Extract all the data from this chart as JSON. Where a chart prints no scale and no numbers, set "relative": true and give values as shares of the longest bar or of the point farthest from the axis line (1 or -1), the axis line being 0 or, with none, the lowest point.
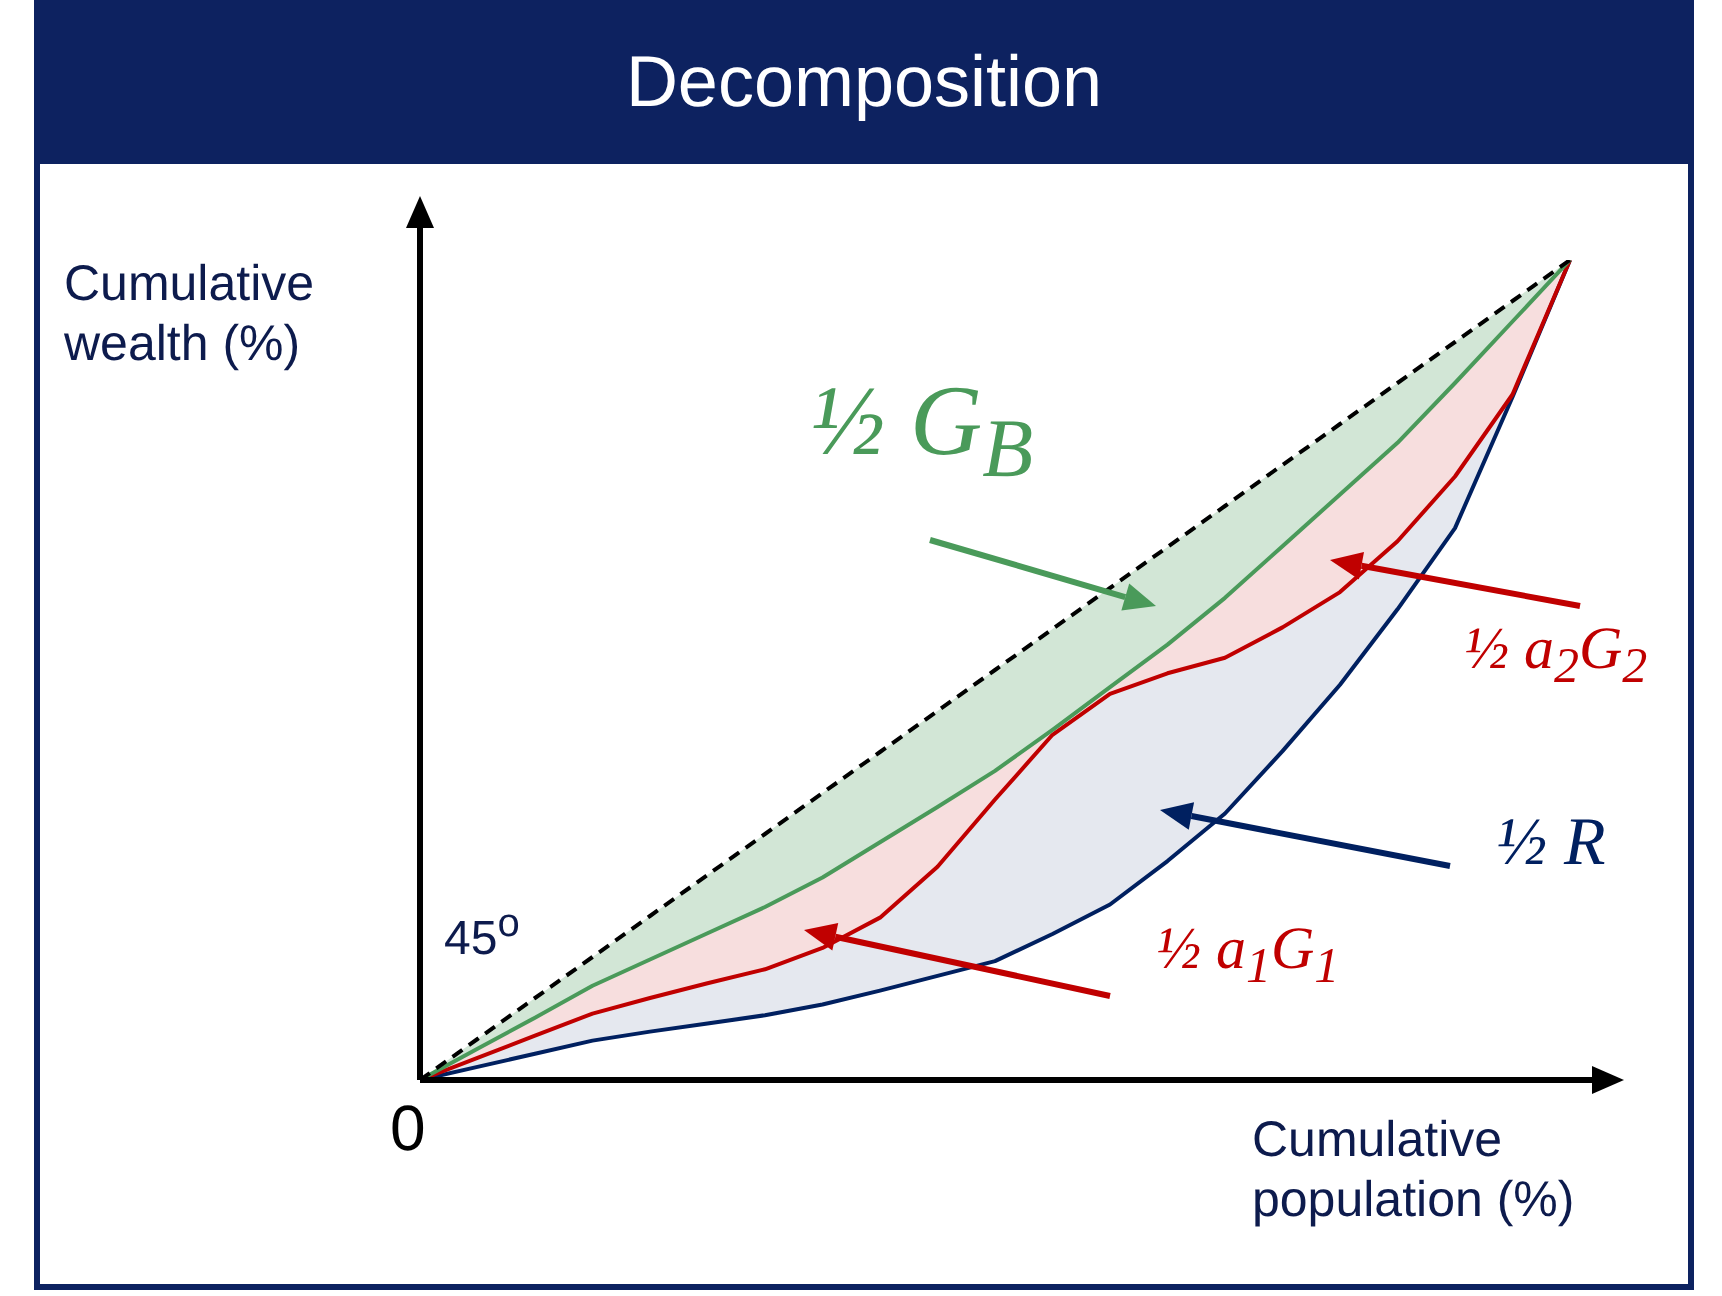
{
  "chart_data": {
    "type": "line",
    "title": "Decomposition",
    "xlabel": "Cumulative population (%)",
    "ylabel": "Cumulative wealth (%)",
    "relative": true,
    "legend": false,
    "categories": [
      null,
      null,
      null,
      null,
      null,
      null,
      null,
      null,
      null,
      null,
      null,
      null,
      null,
      null,
      null,
      null,
      null,
      null,
      null,
      null,
      null
    ],
    "series": [
      {
        "color": "#000000",
        "line_style": "dashed",
        "values": [
          0,
          0.05,
          0.1,
          0.15,
          0.2,
          0.25,
          0.3,
          0.35,
          0.4,
          0.45,
          0.5,
          0.55,
          0.6,
          0.65,
          0.7,
          0.75,
          0.8,
          0.85,
          0.9,
          0.95,
          1
        ]
      },
      {
        "color": "#4a9a5a",
        "values": [
          0,
          0.038,
          0.076,
          0.115,
          0.147,
          0.179,
          0.211,
          0.247,
          0.29,
          0.333,
          0.377,
          0.427,
          0.479,
          0.531,
          0.588,
          0.651,
          0.714,
          0.777,
          0.85,
          0.925,
          1
        ]
      },
      {
        "color": "#c00000",
        "values": [
          0,
          0.027,
          0.054,
          0.081,
          0.1,
          0.118,
          0.135,
          0.161,
          0.198,
          0.26,
          0.342,
          0.421,
          0.471,
          0.496,
          0.515,
          0.552,
          0.595,
          0.657,
          0.736,
          0.836,
          1
        ]
      },
      {
        "color": "#002060",
        "values": [
          0,
          0.016,
          0.032,
          0.048,
          0.059,
          0.069,
          0.079,
          0.092,
          0.109,
          0.127,
          0.145,
          0.178,
          0.214,
          0.267,
          0.325,
          0.401,
          0.482,
          0.574,
          0.673,
          0.833,
          1
        ]
      }
    ],
    "annotations": [
      "0",
      "45$^{o}$",
      "½ G$_{B}$",
      "½ a$_{2}$G$_{2}$",
      "½ R",
      "½ a$_{1}$G$_{1}$"
    ]
  }
}
